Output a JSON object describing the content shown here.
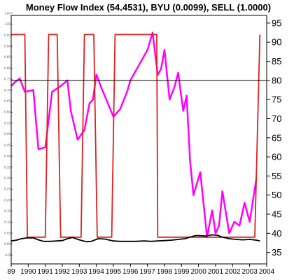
{
  "chart_data": {
    "type": "line",
    "title": "Money Flow Index (54.4531), BYU (0.0099), SELL (1.0000)",
    "x_range": [
      1989.0,
      2004.0
    ],
    "x_ticks": [
      "89",
      "1990",
      "1991",
      "1992",
      "1993",
      "1994",
      "1995",
      "1996",
      "1997",
      "1998",
      "1999",
      "2000",
      "2001",
      "2002",
      "2003",
      "2004"
    ],
    "right_axis": {
      "range": [
        32,
        97
      ],
      "ticks": [
        "35",
        "40",
        "45",
        "50",
        "55",
        "60",
        "65",
        "70",
        "75",
        "80",
        "85",
        "90",
        "95"
      ]
    },
    "left_axis": {
      "range": [
        -0.09,
        1.04
      ],
      "ticks": [
        "1.05",
        "1.00",
        "0.95",
        "0.90",
        "0.85",
        "0.80",
        "0.75",
        "0.70",
        "0.65",
        "0.60",
        "0.55",
        "0.50",
        "0.45",
        "0.40",
        "0.35",
        "0.30",
        "0.25",
        "0.20",
        "0.15",
        "0.10",
        "0.05",
        "0.00",
        "-0.05"
      ]
    },
    "reference_line": 80,
    "grid": false,
    "series": [
      {
        "color": "#ff00ff",
        "axis": "right",
        "x": [
          1989.0,
          1989.2,
          1989.5,
          1989.8,
          1990.3,
          1990.6,
          1991.0,
          1991.4,
          1991.9,
          1992.3,
          1992.5,
          1992.9,
          1993.3,
          1993.6,
          1993.8,
          1994.0,
          1994.3,
          1995.0,
          1995.4,
          1995.8,
          1996.0,
          1997.0,
          1997.3,
          1997.6,
          1997.8,
          1998.0,
          1998.3,
          1998.6,
          1998.8,
          1999.1,
          1999.3,
          1999.5,
          1999.7,
          2000.1,
          2000.5,
          2000.8,
          2001.0,
          2001.2,
          2001.4,
          2001.8,
          2002.1,
          2002.4,
          2002.7,
          2003.0,
          2003.4
        ],
        "values": [
          78.5,
          79.5,
          80.5,
          77.0,
          77.5,
          62.0,
          62.5,
          77.0,
          78.5,
          80.0,
          72.0,
          64.5,
          67.0,
          74.0,
          75.0,
          81.5,
          78.0,
          70.5,
          72.5,
          77.0,
          80.0,
          88.0,
          92.5,
          81.5,
          83.0,
          88.0,
          75.0,
          78.5,
          82.0,
          72.0,
          76.0,
          59.0,
          50.0,
          56.0,
          39.0,
          46.0,
          40.0,
          42.0,
          51.0,
          40.0,
          43.0,
          42.0,
          48.0,
          43.0,
          54.5
        ]
      },
      {
        "color": "#dd2222",
        "axis": "right",
        "x": [
          1989.0,
          1989.8,
          1989.95,
          1990.8,
          1991.0,
          1991.2,
          1991.55,
          1991.7,
          1991.9,
          1992.35,
          1992.5,
          1993.1,
          1993.3,
          1993.85,
          1994.05,
          1994.9,
          1995.1,
          1996.6,
          1997.25,
          1997.55,
          1997.6,
          1998.3,
          1998.45,
          1999.1,
          2002.1,
          2003.3,
          2003.6
        ],
        "values": [
          92.0,
          92.0,
          39.0,
          39.0,
          39.0,
          92.0,
          92.0,
          92.0,
          39.0,
          39.0,
          39.0,
          39.0,
          92.0,
          92.0,
          39.0,
          39.0,
          92.0,
          92.0,
          92.0,
          92.0,
          39.0,
          39.0,
          39.0,
          39.0,
          39.0,
          39.0,
          92.0
        ]
      },
      {
        "color": "#000000",
        "axis": "right",
        "x": [
          1989.0,
          1989.3,
          1989.6,
          1989.9,
          1990.3,
          1990.6,
          1990.9,
          1991.3,
          1991.7,
          1992.0,
          1992.3,
          1992.6,
          1993.0,
          1993.4,
          1993.7,
          1994.1,
          1994.5,
          1995.0,
          1995.4,
          1995.8,
          1996.3,
          1996.8,
          1997.2,
          1997.6,
          1998.0,
          1998.4,
          1998.8,
          1999.2,
          1999.5,
          1999.8,
          2000.1,
          2000.4,
          2000.8,
          2001.1,
          2001.4,
          2001.8,
          2002.2,
          2002.6,
          2003.0,
          2003.4,
          2003.6
        ],
        "values": [
          38.0,
          38.2,
          38.6,
          38.8,
          38.8,
          38.3,
          37.9,
          37.9,
          38.0,
          38.1,
          38.6,
          38.9,
          38.3,
          37.8,
          37.9,
          38.6,
          38.5,
          38.0,
          37.9,
          37.9,
          37.9,
          38.0,
          37.9,
          38.0,
          38.1,
          38.2,
          38.4,
          38.6,
          39.0,
          39.4,
          39.4,
          39.3,
          39.6,
          39.5,
          39.0,
          38.6,
          38.4,
          38.3,
          38.4,
          38.2,
          38.0
        ]
      }
    ]
  }
}
